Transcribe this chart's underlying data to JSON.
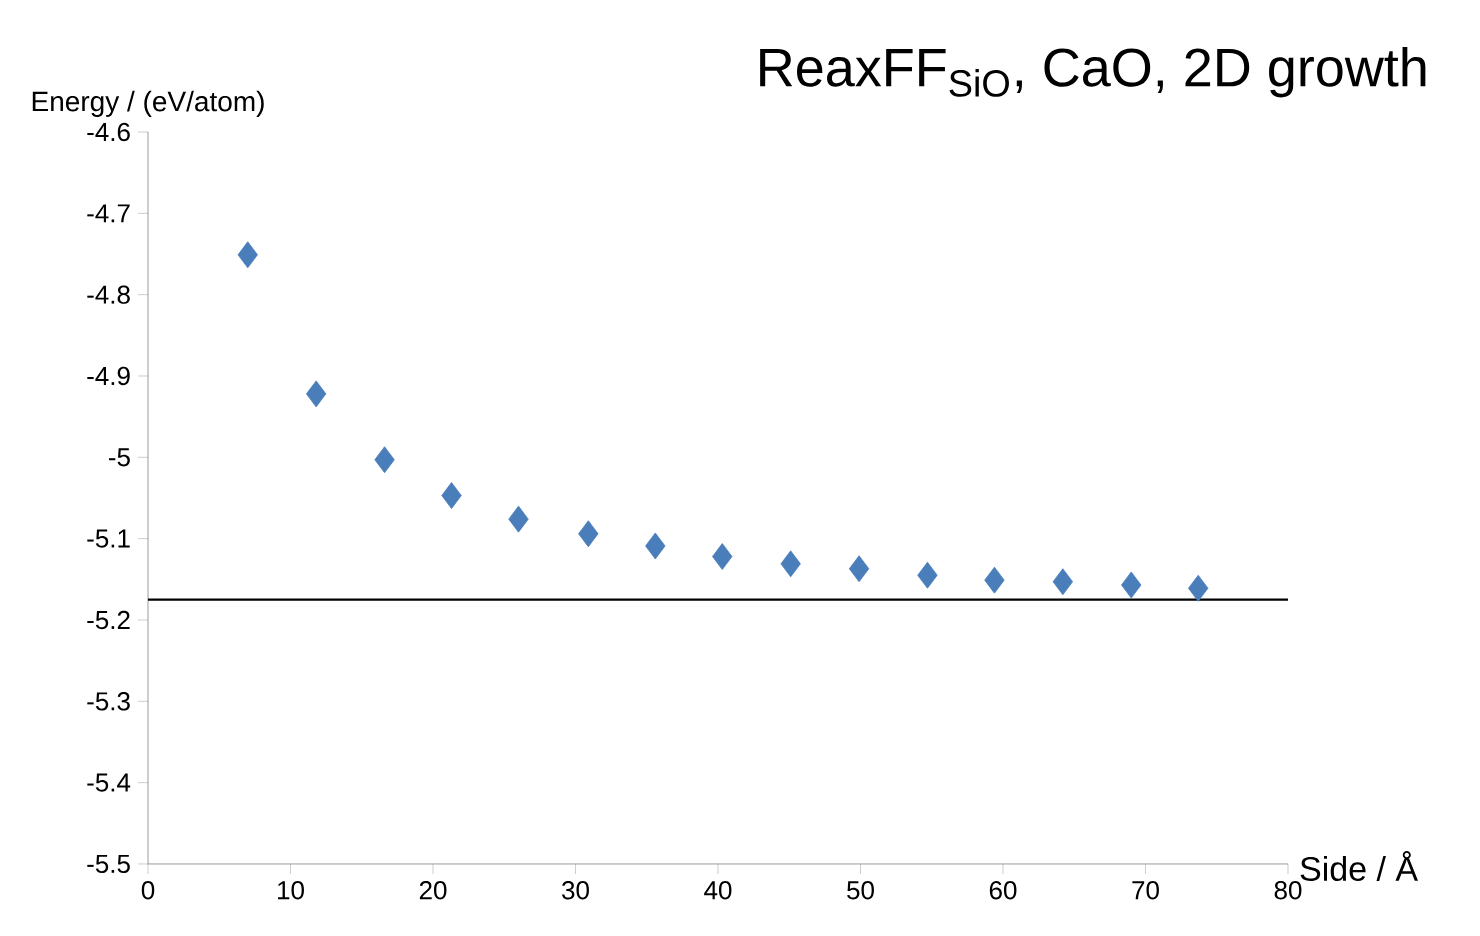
{
  "chart_data": {
    "type": "scatter",
    "title": "ReaxFF$_{SiO}$, CaO, 2D growth",
    "xlabel": "Side / Å",
    "ylabel": "Energy / (eV/atom)",
    "x": [
      7.0,
      11.8,
      16.6,
      21.3,
      26.0,
      30.9,
      35.6,
      40.3,
      45.1,
      49.9,
      54.7,
      59.4,
      64.2,
      69.0,
      73.7
    ],
    "series": [
      {
        "color": "#4a7ebb",
        "values": [
          -4.751,
          -4.922,
          -5.003,
          -5.047,
          -5.076,
          -5.094,
          -5.109,
          -5.122,
          -5.131,
          -5.137,
          -5.145,
          -5.151,
          -5.153,
          -5.157,
          -5.161
        ]
      }
    ],
    "marker": "diamond",
    "xlim": [
      0,
      80
    ],
    "xticks": [
      0,
      10,
      20,
      30,
      40,
      50,
      60,
      70,
      80
    ],
    "ylim": [
      -5.5,
      -4.6
    ],
    "yticks": [
      -5.5,
      -5.4,
      -5.3,
      -5.2,
      -5.1,
      -5,
      -4.9,
      -4.8,
      -4.7,
      -4.6
    ],
    "ref_lines": [
      {
        "axis": "y",
        "value": -5.175,
        "color": "#000000"
      }
    ]
  }
}
